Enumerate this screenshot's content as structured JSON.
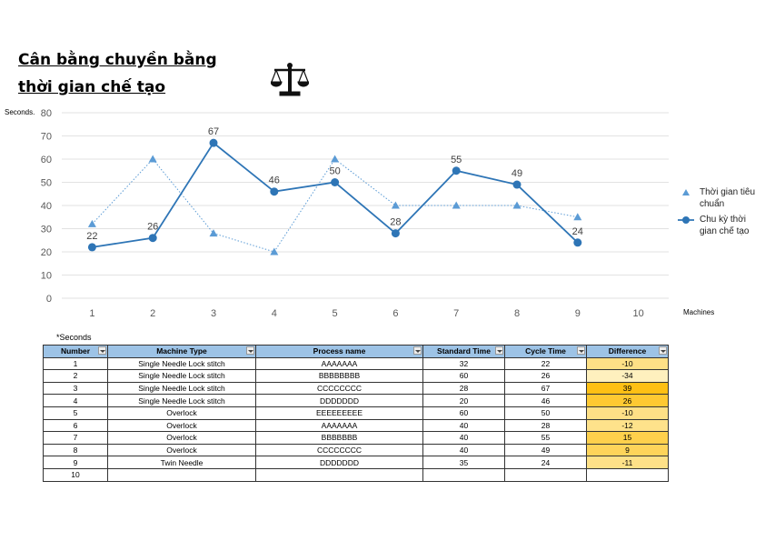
{
  "header": {
    "title_lines": [
      "Cân bằng chuyền bằng",
      "thời gian chế tạo"
    ]
  },
  "chart_data": {
    "type": "line",
    "y_label": "Seconds.",
    "x_label": "Machines",
    "x": [
      1,
      2,
      3,
      4,
      5,
      6,
      7,
      8,
      9,
      10
    ],
    "xlim": [
      0.5,
      10.5
    ],
    "xticks": [
      1,
      2,
      3,
      4,
      5,
      6,
      7,
      8,
      9,
      10
    ],
    "ylim": [
      0,
      80
    ],
    "yticks": [
      0,
      10,
      20,
      30,
      40,
      50,
      60,
      70,
      80
    ],
    "grid": true,
    "legend": "right",
    "series": [
      {
        "name": "Thời gian tiêu chuẩn",
        "color": "#5b9bd5",
        "style": "dotted",
        "marker": "triangle",
        "data_labels": false,
        "values": [
          32,
          60,
          28,
          20,
          60,
          40,
          40,
          40,
          35,
          null
        ]
      },
      {
        "name": "Chu kỳ thời gian chế tạo",
        "color": "#2e75b6",
        "style": "solid",
        "marker": "circle",
        "data_labels": true,
        "values": [
          22,
          26,
          67,
          46,
          50,
          28,
          55,
          49,
          24,
          null
        ]
      }
    ]
  },
  "table": {
    "note": "*Seconds",
    "columns": [
      "Number",
      "Machine Type",
      "Process name",
      "Standard Time",
      "Cycle Time",
      "Difference"
    ],
    "rows": [
      [
        1,
        "Single Needle Lock stitch",
        "AAAAAAA",
        32,
        22,
        -10
      ],
      [
        2,
        "Single Needle Lock stitch",
        "BBBBBBBB",
        60,
        26,
        -34
      ],
      [
        3,
        "Single Needle Lock stitch",
        "CCCCCCCC",
        28,
        67,
        39
      ],
      [
        4,
        "Single Needle Lock stitch",
        "DDDDDDD",
        20,
        46,
        26
      ],
      [
        5,
        "Overlock",
        "EEEEEEEEE",
        60,
        50,
        -10
      ],
      [
        6,
        "Overlock",
        "AAAAAAA",
        40,
        28,
        -12
      ],
      [
        7,
        "Overlock",
        "BBBBBBB",
        40,
        55,
        15
      ],
      [
        8,
        "Overlock",
        "CCCCCCCC",
        40,
        49,
        9
      ],
      [
        9,
        "Twin Needle",
        "DDDDDDD",
        35,
        24,
        -11
      ],
      [
        10,
        null,
        null,
        null,
        null,
        null
      ]
    ]
  }
}
